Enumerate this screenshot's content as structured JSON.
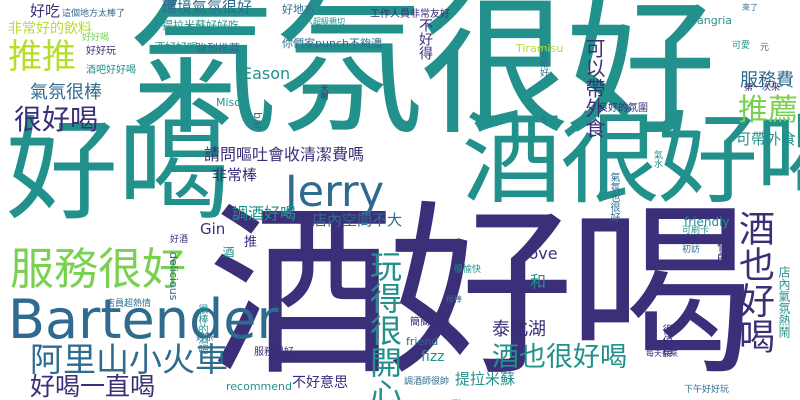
{
  "colors": {
    "navy": "#3b2f7a",
    "teal": "#22918b",
    "green": "#7ad151",
    "blue": "#2f6b8e",
    "lime": "#b5de2b"
  },
  "words": {
    "qi_fen_hen_hao": "氣氛很好",
    "jiu_hao_he": "酒好喝",
    "hao_he": "好喝",
    "jiu_hen_hao_he": "酒很好喝",
    "jerry": "Jerry",
    "bartender": "Bartender",
    "fu_wu_hen_hao": "服務很好",
    "a_li_shan": "阿里山小火車",
    "hao_he_yi_zhi_he": "好喝一直喝",
    "wan_de_hen_kai_xin": "玩得很開心",
    "jiu_ye_hen_hao_he": "酒也很好喝",
    "jiu_ye_hao_he": "酒也好喝",
    "tui_tui": "推推",
    "hen_hao_he": "很好喝",
    "qi_fen_hen_bang": "氣氛很棒",
    "tui_jian": "推薦",
    "fu_wu_fei": "服務費",
    "ke_yi_dai_wai_shi": "可以帶外食",
    "ke_dai_wai_shi": "可帶外食",
    "qing_wen_ou_tu": "請問嘔吐會收清潔費嗎",
    "tiao_jiu_hao_he": "調酒好喝",
    "dian_nei_kong_jian": "店內空間不大",
    "fei_chang_bang": "非常棒",
    "eason": "Eason",
    "gin": "Gin",
    "love": "love",
    "he": "和",
    "tai_bei_hu": "泰北湖",
    "fizz": "fizz",
    "ti_la_mi_su": "提拉米蘇",
    "bu_hao_yi_si": "不好意思",
    "hen_shuai": "很帥",
    "dian_nei_qi_fen_re_nao": "店內氣氛熱鬧",
    "huan_jing_qi_fen_hao": "環境氣氛很好",
    "hao_chi": "好吃",
    "fei_chang_hao_de_yin_liao": "非常好的飲料",
    "bu_hao_de": "不好得",
    "sangria": "Sangria",
    "tiramisu": "Tiramisu",
    "miso": "Miso",
    "friendly": "friendly",
    "recommend": "recommend",
    "friend": "friend",
    "delicious": "delicious",
    "bar": "bar",
    "s": "s",
    "tui": "推",
    "jiu": "酒",
    "hao_di_fang": "好地方",
    "gong_zuo_ren_yuan": "工作人員非常友好",
    "ren_hen_qin_qie": "人超級親切",
    "ti_la_mi_su_hao_hao_chi": "提拉米蘇好好吃",
    "jiu_hao_hao_he": "酒好好喝",
    "qiang_li_tui_jian": "強烈推薦",
    "ni_men_jia_punch": "你們家punch不夠濃",
    "hao_hao_wan": "好好玩",
    "bar_hao_hao": "酒吧好好喝",
    "zhe_ge_di_fang_tai_bang": "這個地方太棒了",
    "hao_hao_he_small": "好好喝",
    "fei_chang_hao": "非常好",
    "tian_ye": "天啊",
    "lai_le": "來了",
    "di_yi_ci_lai": "第一次來",
    "ke_ai": "可愛",
    "yuan": "元",
    "liang_hao_de_qi_fen": "良好的氛圍",
    "ke_shua_ka": "可刷卡",
    "qi_fen_ye_hao": "氣氛也很好",
    "hen_bang_de_jiu_ba": "很棒的酒吧",
    "chu_ci": "初訪",
    "hao_jiu": "好酒",
    "hao_cha": "好茶",
    "dian_yuan_chao_re_qing": "店員超熱情",
    "mu_mu_zui_bang": "簡簡最棒",
    "fu_wu_hen_hao_small": "服務很好",
    "tiao_jiu_shi_shuai": "調酒師很帥",
    "hen_yu_kuai": "很愉快",
    "xia_wu_hao_hao_wan": "下午好好玩",
    "hen_zhi_de": "很值得",
    "qiao_bang": "很棒",
    "gu_hao": "超好",
    "mei_tian_zuo": "每天都來",
    "qi_shui": "氣水"
  }
}
